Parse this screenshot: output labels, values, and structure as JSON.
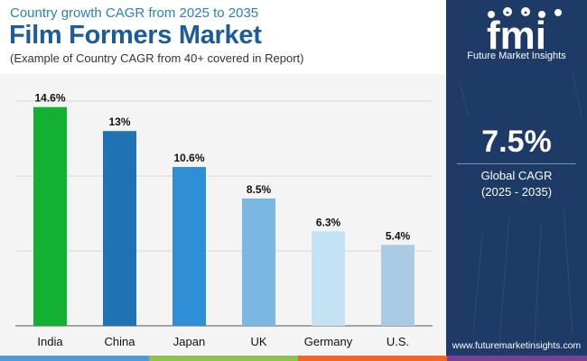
{
  "header": {
    "subtitle": "Country growth CAGR from 2025 to 2035",
    "title": "Film Formers Market",
    "note": "(Example of Country CAGR from 40+ covered in Report)"
  },
  "chart_data": {
    "type": "bar",
    "categories": [
      "India",
      "China",
      "Japan",
      "UK",
      "Germany",
      "U.S."
    ],
    "values": [
      14.6,
      13,
      10.6,
      8.5,
      6.3,
      5.4
    ],
    "value_labels": [
      "14.6%",
      "13%",
      "10.6%",
      "8.5%",
      "6.3%",
      "5.4%"
    ],
    "colors": [
      "#12b134",
      "#2073b2",
      "#2f8fd6",
      "#7ab7e3",
      "#c3e2f4",
      "#a9cbe4"
    ],
    "title": "",
    "xlabel": "",
    "ylabel": "",
    "ylim": [
      0,
      15
    ],
    "grid": true
  },
  "sidebar": {
    "brand_logo_text": "fmi",
    "brand_name": "Future Market Insights",
    "kpi_value": "7.5%",
    "kpi_label": "Global CAGR",
    "kpi_period": "(2025 - 2035)",
    "website": "www.futuremarketinsights.com"
  },
  "footer": {
    "colors": [
      "#4a9cd8",
      "#8bc34a",
      "#f26522",
      "#7b3f98"
    ]
  }
}
